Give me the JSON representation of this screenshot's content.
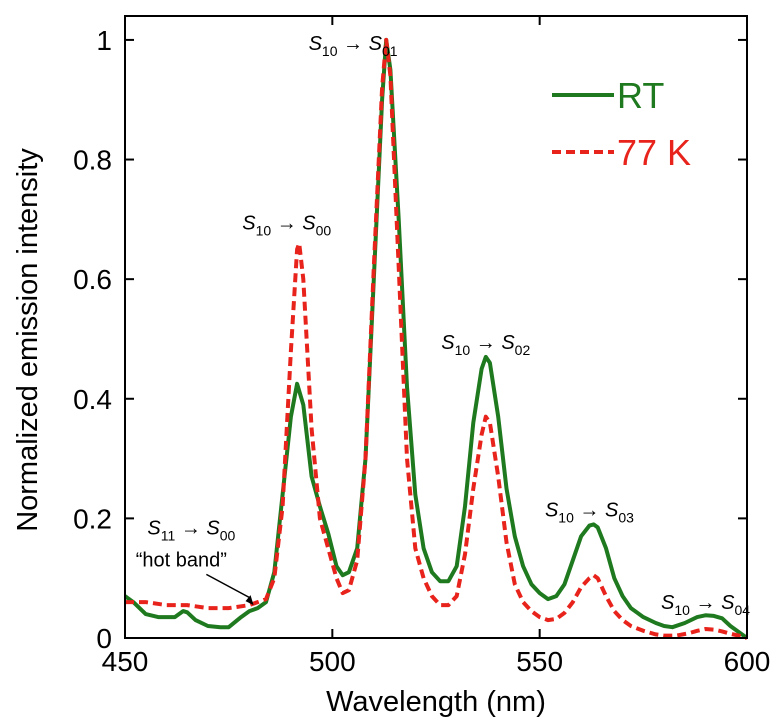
{
  "chart_data": {
    "type": "line",
    "xlabel": "Wavelength (nm)",
    "ylabel": "Normalized emission intensity",
    "xlim": [
      450,
      600
    ],
    "ylim": [
      0,
      1.04
    ],
    "xticks": [
      "450",
      "500",
      "550",
      "600"
    ],
    "yticks": [
      "0",
      "0.2",
      "0.4",
      "0.6",
      "0.8",
      "1"
    ],
    "grid": false,
    "legend_position": "top-right",
    "series": [
      {
        "name": "RT",
        "color": "#1f7a1f",
        "style": "solid",
        "points": [
          [
            450,
            0.07
          ],
          [
            452,
            0.06
          ],
          [
            455,
            0.04
          ],
          [
            458,
            0.035
          ],
          [
            460,
            0.035
          ],
          [
            462,
            0.035
          ],
          [
            464,
            0.045
          ],
          [
            465,
            0.043
          ],
          [
            467,
            0.03
          ],
          [
            470,
            0.02
          ],
          [
            473,
            0.018
          ],
          [
            475,
            0.018
          ],
          [
            478,
            0.035
          ],
          [
            480,
            0.045
          ],
          [
            482,
            0.05
          ],
          [
            484,
            0.06
          ],
          [
            486,
            0.11
          ],
          [
            488,
            0.24
          ],
          [
            490,
            0.37
          ],
          [
            491.5,
            0.425
          ],
          [
            493,
            0.39
          ],
          [
            495,
            0.27
          ],
          [
            497,
            0.22
          ],
          [
            499,
            0.175
          ],
          [
            501,
            0.12
          ],
          [
            502.5,
            0.105
          ],
          [
            504,
            0.11
          ],
          [
            506,
            0.15
          ],
          [
            508,
            0.3
          ],
          [
            510,
            0.6
          ],
          [
            512,
            0.9
          ],
          [
            513,
            1.0
          ],
          [
            514,
            0.95
          ],
          [
            516,
            0.7
          ],
          [
            518,
            0.42
          ],
          [
            520,
            0.24
          ],
          [
            522,
            0.15
          ],
          [
            524,
            0.11
          ],
          [
            526,
            0.095
          ],
          [
            528,
            0.095
          ],
          [
            530,
            0.12
          ],
          [
            532,
            0.22
          ],
          [
            534,
            0.36
          ],
          [
            536,
            0.45
          ],
          [
            537,
            0.47
          ],
          [
            538,
            0.46
          ],
          [
            540,
            0.37
          ],
          [
            542,
            0.25
          ],
          [
            544,
            0.17
          ],
          [
            546,
            0.12
          ],
          [
            548,
            0.09
          ],
          [
            550,
            0.075
          ],
          [
            552,
            0.065
          ],
          [
            554,
            0.07
          ],
          [
            556,
            0.09
          ],
          [
            558,
            0.13
          ],
          [
            560,
            0.17
          ],
          [
            562,
            0.188
          ],
          [
            563,
            0.19
          ],
          [
            564,
            0.185
          ],
          [
            566,
            0.15
          ],
          [
            568,
            0.1
          ],
          [
            570,
            0.07
          ],
          [
            572,
            0.05
          ],
          [
            575,
            0.035
          ],
          [
            578,
            0.025
          ],
          [
            580,
            0.02
          ],
          [
            582,
            0.018
          ],
          [
            585,
            0.025
          ],
          [
            588,
            0.035
          ],
          [
            590,
            0.038
          ],
          [
            592,
            0.037
          ],
          [
            594,
            0.033
          ],
          [
            596,
            0.02
          ],
          [
            598,
            0.01
          ],
          [
            600,
            0.0
          ]
        ]
      },
      {
        "name": "77 K",
        "color": "#e8231c",
        "style": "dashed",
        "points": [
          [
            450,
            0.06
          ],
          [
            455,
            0.06
          ],
          [
            460,
            0.055
          ],
          [
            465,
            0.055
          ],
          [
            470,
            0.05
          ],
          [
            475,
            0.05
          ],
          [
            480,
            0.055
          ],
          [
            484,
            0.065
          ],
          [
            486,
            0.1
          ],
          [
            488,
            0.22
          ],
          [
            490,
            0.48
          ],
          [
            491.5,
            0.65
          ],
          [
            492,
            0.66
          ],
          [
            493,
            0.6
          ],
          [
            495,
            0.35
          ],
          [
            497,
            0.2
          ],
          [
            499,
            0.15
          ],
          [
            501,
            0.1
          ],
          [
            502.5,
            0.075
          ],
          [
            504,
            0.08
          ],
          [
            506,
            0.13
          ],
          [
            508,
            0.3
          ],
          [
            510,
            0.62
          ],
          [
            512,
            0.92
          ],
          [
            513,
            1.0
          ],
          [
            514,
            0.94
          ],
          [
            516,
            0.62
          ],
          [
            518,
            0.3
          ],
          [
            520,
            0.15
          ],
          [
            522,
            0.1
          ],
          [
            524,
            0.07
          ],
          [
            526,
            0.055
          ],
          [
            528,
            0.055
          ],
          [
            530,
            0.07
          ],
          [
            532,
            0.14
          ],
          [
            534,
            0.25
          ],
          [
            536,
            0.34
          ],
          [
            537,
            0.37
          ],
          [
            538,
            0.36
          ],
          [
            540,
            0.27
          ],
          [
            542,
            0.16
          ],
          [
            544,
            0.09
          ],
          [
            546,
            0.06
          ],
          [
            548,
            0.045
          ],
          [
            550,
            0.035
          ],
          [
            552,
            0.03
          ],
          [
            554,
            0.032
          ],
          [
            556,
            0.042
          ],
          [
            558,
            0.06
          ],
          [
            560,
            0.085
          ],
          [
            562,
            0.1
          ],
          [
            563,
            0.105
          ],
          [
            564,
            0.1
          ],
          [
            566,
            0.07
          ],
          [
            568,
            0.045
          ],
          [
            570,
            0.03
          ],
          [
            572,
            0.02
          ],
          [
            575,
            0.012
          ],
          [
            578,
            0.006
          ],
          [
            580,
            0.004
          ],
          [
            583,
            0.004
          ],
          [
            586,
            0.008
          ],
          [
            588,
            0.012
          ],
          [
            590,
            0.015
          ],
          [
            592,
            0.014
          ],
          [
            594,
            0.011
          ],
          [
            596,
            0.007
          ],
          [
            598,
            0.004
          ],
          [
            600,
            0.0
          ]
        ]
      }
    ],
    "annotations": [
      {
        "from": "S",
        "from_sub": "10",
        "to": "S",
        "to_sub": "01",
        "x": 505,
        "y": 1.0
      },
      {
        "from": "S",
        "from_sub": "10",
        "to": "S",
        "to_sub": "00",
        "x": 489,
        "y": 0.7
      },
      {
        "from": "S",
        "from_sub": "10",
        "to": "S",
        "to_sub": "02",
        "x": 537,
        "y": 0.5
      },
      {
        "from": "S",
        "from_sub": "10",
        "to": "S",
        "to_sub": "03",
        "x": 562,
        "y": 0.22
      },
      {
        "from": "S",
        "from_sub": "10",
        "to": "S",
        "to_sub": "04",
        "x": 590,
        "y": 0.065
      },
      {
        "from": "S",
        "from_sub": "11",
        "to": "S",
        "to_sub": "00",
        "x": 466,
        "y": 0.19,
        "note": "“hot band”",
        "arrow_to": [
          481,
          0.055
        ]
      }
    ]
  }
}
